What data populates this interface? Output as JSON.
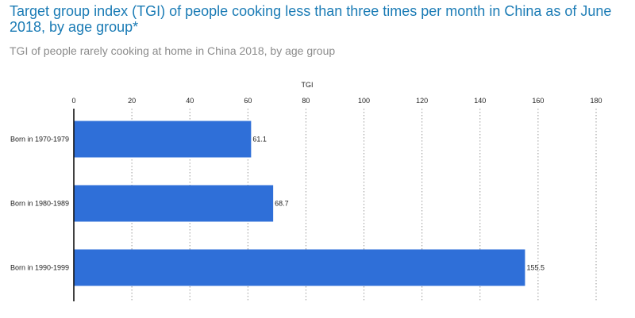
{
  "header": {
    "title": "Target group index (TGI) of people cooking less than three times per month in China as of June 2018, by age group*",
    "subtitle": "TGI of people rarely cooking at home in China 2018, by age group"
  },
  "chart_data": {
    "type": "bar",
    "orientation": "horizontal",
    "categories": [
      "Born in 1970-1979",
      "Born in 1980-1989",
      "Born in 1990-1999"
    ],
    "values": [
      61.1,
      68.7,
      155.5
    ],
    "data_labels": [
      "61.1",
      "68.7",
      "155.5"
    ],
    "title": "Target group index (TGI) of people cooking less than three times per month in China as of June 2018, by age group*",
    "subtitle": "TGI of people rarely cooking at home in China 2018, by age group",
    "xlabel": "TGI",
    "ylabel": "",
    "xlim": [
      0,
      180
    ],
    "ticks": [
      0,
      20,
      40,
      60,
      80,
      100,
      120,
      140,
      160,
      180
    ],
    "tick_labels": [
      "0",
      "20",
      "40",
      "60",
      "80",
      "100",
      "120",
      "140",
      "160",
      "180"
    ],
    "axis_position": "top",
    "grid": true,
    "legend": "none",
    "colors": {
      "bar": "#2f6fd8",
      "grid": "#9a9a9a",
      "axis": "#111111"
    }
  }
}
